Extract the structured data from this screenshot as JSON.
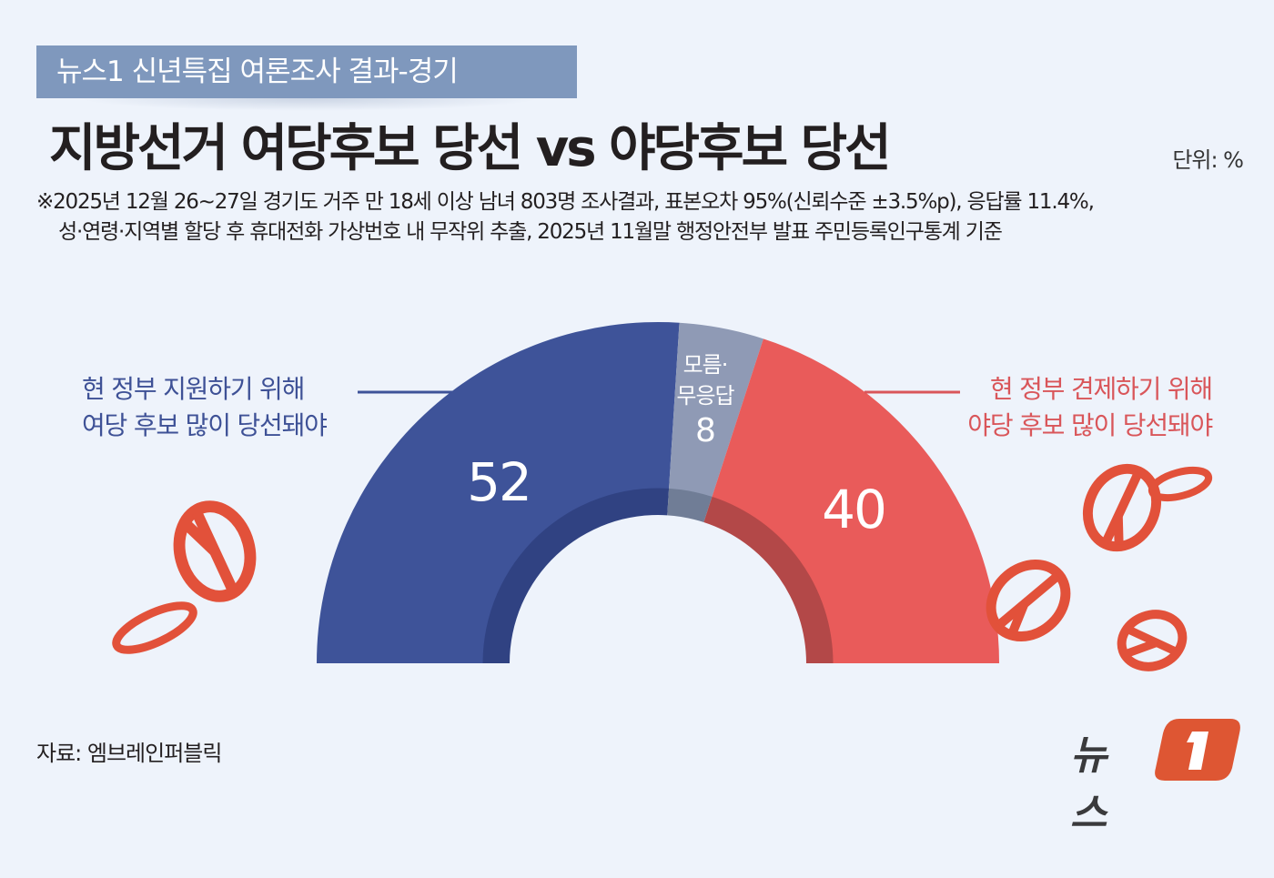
{
  "header": {
    "kicker": "뉴스1 신년특집 여론조사 결과-경기",
    "title": "지방선거 여당후보 당선 vs 야당후보 당선",
    "unit": "단위: %"
  },
  "note": {
    "line1": "※2025년 12월 26~27일 경기도 거주 만 18세 이상 남녀 803명 조사결과, 표본오차 95%(신뢰수준 ±3.5%p), 응답률 11.4%,",
    "line2": "성·연령·지역별 할당 후 휴대전화 가상번호 내 무작위 추출,  2025년 11월말 행정안전부 발표 주민등록인구통계 기준"
  },
  "labels": {
    "left_line1": "현 정부 지원하기 위해",
    "left_line2": "여당 후보 많이 당선돼야",
    "right_line1": "현 정부 견제하기 위해",
    "right_line2": "야당 후보 많이 당선돼야",
    "gray_line1": "모름·",
    "gray_line2": "무응답"
  },
  "values": {
    "ruling": "52",
    "unknown": "8",
    "opposition": "40"
  },
  "colors": {
    "ruling": "#3e5399",
    "ruling_dark": "#304282",
    "unknown": "#8f9ab5",
    "unknown_dark": "#707d96",
    "opposition": "#e95b5a",
    "opposition_dark": "#b34848",
    "background": "#eef3fb",
    "kicker_bg": "#7f98bd",
    "stamp": "#e2513a",
    "logo_accent": "#de5633"
  },
  "footer": {
    "source": "자료: 엠브레인퍼블릭",
    "logo_text": "뉴스",
    "logo_num": "1"
  },
  "chart_data": {
    "type": "pie",
    "subtype": "semicircle-donut",
    "title": "지방선거 여당후보 당선 vs 야당후보 당선",
    "unit": "%",
    "categories": [
      "현 정부 지원하기 위해 여당 후보 많이 당선돼야",
      "모름·무응답",
      "현 정부 견제하기 위해 야당 후보 많이 당선돼야"
    ],
    "values": [
      52,
      8,
      40
    ],
    "colors": [
      "#3e5399",
      "#8f9ab5",
      "#e95b5a"
    ],
    "source": "엠브레인퍼블릭",
    "sample": "경기도 거주 만 18세 이상 남녀 803명",
    "margin_of_error": "±3.5%p",
    "response_rate": "11.4%"
  }
}
